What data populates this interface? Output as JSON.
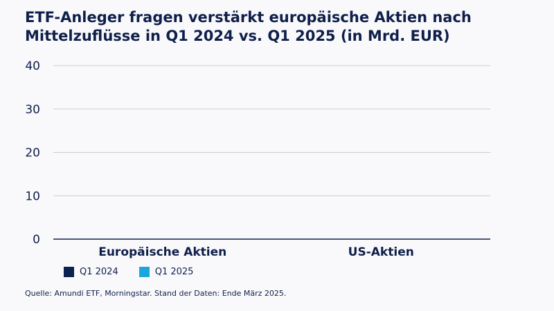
{
  "title_line1": "ETF-Anleger fragen verstärkt europäische Aktien nach",
  "title_line2": "Mittelzuflüsse in Q1 2024 vs. Q1 2025 (in Mrd. EUR)",
  "source": "Quelle: Amundi ETF, Morningstar. Stand der Daten: Ende März 2025.",
  "colors": {
    "q1_2024": "#0c2150",
    "q1_2025": "#1aa6db",
    "grid": "#c9ccd3",
    "axis": "#0f1f4a"
  },
  "chart_data": {
    "type": "bar",
    "title": "ETF-Anleger fragen verstärkt europäische Aktien nach Mittelzuflüsse in Q1 2024 vs. Q1 2025 (in Mrd. EUR)",
    "categories": [
      "Europäische Aktien",
      "US-Aktien"
    ],
    "series": [
      {
        "name": "Q1 2024",
        "values": [
          null,
          null
        ]
      },
      {
        "name": "Q1 2025",
        "values": [
          null,
          null
        ]
      }
    ],
    "ylim": [
      0,
      40
    ],
    "yticks": [
      0,
      10,
      20,
      30,
      40
    ],
    "grid": true,
    "legend": "bottom-left"
  }
}
